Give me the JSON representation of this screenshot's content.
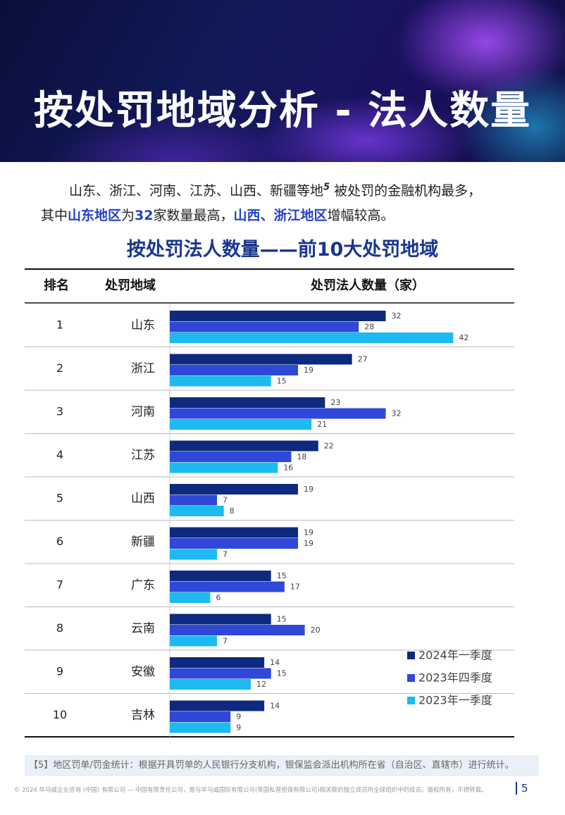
{
  "header": {
    "title": "按处罚地域分析 - 法人数量"
  },
  "intro_lines": [
    [
      {
        "text": "山东、浙江、河南、江苏、山西、新疆等地",
        "style": "normal"
      },
      {
        "text": "5",
        "style": "sup"
      },
      {
        "text": " 被处罚的金融机构最多，",
        "style": "normal"
      }
    ],
    [
      {
        "text": "其中",
        "style": "normal"
      },
      {
        "text": "山东地区",
        "style": "highlight"
      },
      {
        "text": "为",
        "style": "normal"
      },
      {
        "text": "32",
        "style": "highlight"
      },
      {
        "text": "家数量最高，",
        "style": "normal"
      },
      {
        "text": "山西、浙江地区",
        "style": "highlight"
      },
      {
        "text": "增幅较高。",
        "style": "normal"
      }
    ]
  ],
  "table": {
    "headers": [
      "排名",
      "处罚地域",
      "处罚法人数量（家）"
    ],
    "ranks": [
      1,
      2,
      3,
      4,
      5,
      6,
      7,
      8,
      9,
      10
    ]
  },
  "chart_data": {
    "type": "bar",
    "orientation": "horizontal",
    "title": "按处罚法人数量——前10大处罚地域",
    "categories": [
      "山东",
      "浙江",
      "河南",
      "江苏",
      "山西",
      "新疆",
      "广东",
      "云南",
      "安徽",
      "吉林"
    ],
    "series": [
      {
        "name": "2024年一季度",
        "color": "#0d2a7e",
        "values": [
          32,
          27,
          23,
          22,
          19,
          19,
          15,
          15,
          14,
          14
        ]
      },
      {
        "name": "2023年四季度",
        "color": "#2f48d8",
        "values": [
          28,
          19,
          32,
          18,
          7,
          19,
          17,
          20,
          15,
          9
        ]
      },
      {
        "name": "2023年一季度",
        "color": "#1cbaf0",
        "values": [
          42,
          15,
          21,
          16,
          8,
          7,
          6,
          7,
          12,
          9
        ]
      }
    ],
    "xlim": [
      0,
      50
    ],
    "legend": "bottom-right"
  },
  "footnote": "【5】地区罚单/罚金统计：根据开具罚单的人民银行分支机构，银保监会派出机构所在省（自治区、直辖市）进行统计。",
  "footer": {
    "copyright": "© 2024 毕马威企业咨询 (中国) 有限公司 — 中国有限责任公司，是与毕马威国际有限公司(英国私营担保有限公司)相关联的独立成员所全球组织中的成员。版权所有，不得转载。",
    "page_number": "5"
  }
}
